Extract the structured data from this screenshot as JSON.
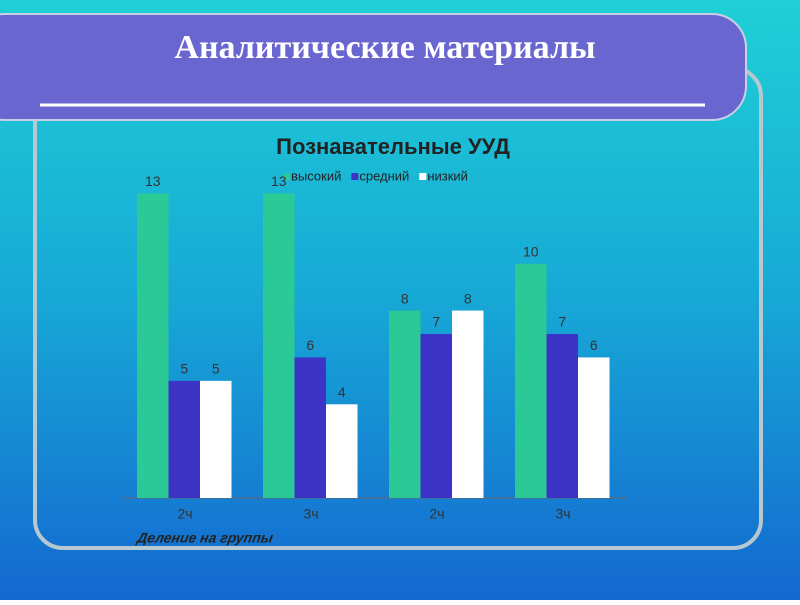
{
  "slide_title": "Аналитические материалы",
  "chart_data": {
    "type": "bar",
    "title": "Познавательные УУД",
    "x_label": "Деление на группы",
    "categories": [
      "2ч",
      "3ч",
      "2ч",
      "3ч"
    ],
    "series": [
      {
        "name": "высокий",
        "color": "#2bc996",
        "values": [
          13,
          13,
          8,
          10
        ]
      },
      {
        "name": "средний",
        "color": "#3b34c6",
        "values": [
          5,
          6,
          7,
          7
        ]
      },
      {
        "name": "низкий",
        "color": "#ffffff",
        "values": [
          5,
          4,
          8,
          6
        ]
      }
    ],
    "ylim": [
      0,
      14
    ],
    "legend": "top"
  }
}
